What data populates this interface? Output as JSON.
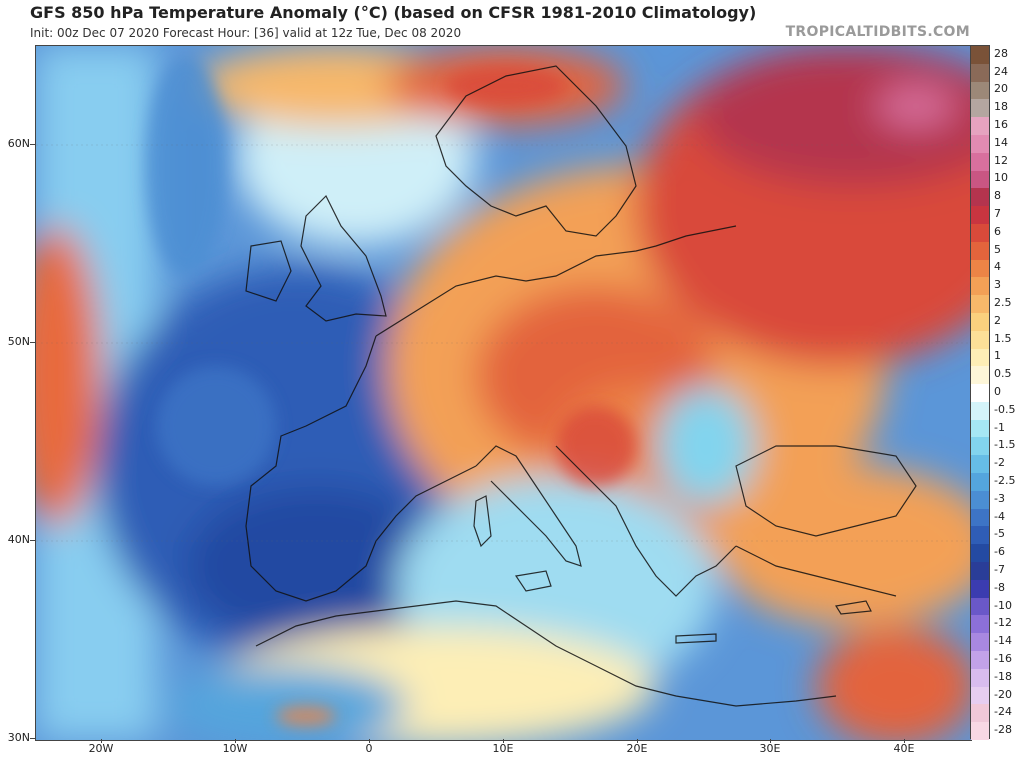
{
  "header": {
    "title": "GFS 850 hPa Temperature Anomaly (°C) (based on CFSR 1981-2010 Climatology)",
    "subtitle": "Init: 00z Dec 07 2020   Forecast Hour: [36]   valid at 12z Tue, Dec 08 2020",
    "brand": "TROPICALTIDBITS.COM"
  },
  "map": {
    "lat_labels": [
      "60N",
      "50N",
      "40N",
      "30N"
    ],
    "lon_labels": [
      "20W",
      "10W",
      "0",
      "10E",
      "20E",
      "30E",
      "40E"
    ]
  },
  "colorbar": {
    "levels": [
      "28",
      "24",
      "20",
      "18",
      "16",
      "14",
      "12",
      "10",
      "8",
      "7",
      "6",
      "5",
      "4",
      "3",
      "2.5",
      "2",
      "1.5",
      "1",
      "0.5",
      "0",
      "-0.5",
      "-1",
      "-1.5",
      "-2",
      "-2.5",
      "-3",
      "-4",
      "-5",
      "-6",
      "-7",
      "-8",
      "-10",
      "-12",
      "-14",
      "-16",
      "-18",
      "-20",
      "-24",
      "-28"
    ],
    "colors": [
      "#7a5238",
      "#8a6a58",
      "#9c8878",
      "#b4a6a0",
      "#e6a3c0",
      "#e28bb2",
      "#d8709e",
      "#c95683",
      "#b4344e",
      "#c93540",
      "#d94a3a",
      "#e3643c",
      "#ec8446",
      "#f3a056",
      "#f7b86a",
      "#fad07e",
      "#fce098",
      "#fdeeb6",
      "#fdf6d8",
      "#ffffff",
      "#d4f4fa",
      "#a6e7f4",
      "#82d4ee",
      "#66bde6",
      "#54a5dd",
      "#4b8ed3",
      "#3d74c6",
      "#2f5db6",
      "#244aa2",
      "#2a3d98",
      "#3b3cb0",
      "#6a58c8",
      "#8c70d8",
      "#a888e0",
      "#c2a2e8",
      "#d8bcee",
      "#e6cdf0",
      "#f0c8d8",
      "#f8d8e4"
    ]
  }
}
